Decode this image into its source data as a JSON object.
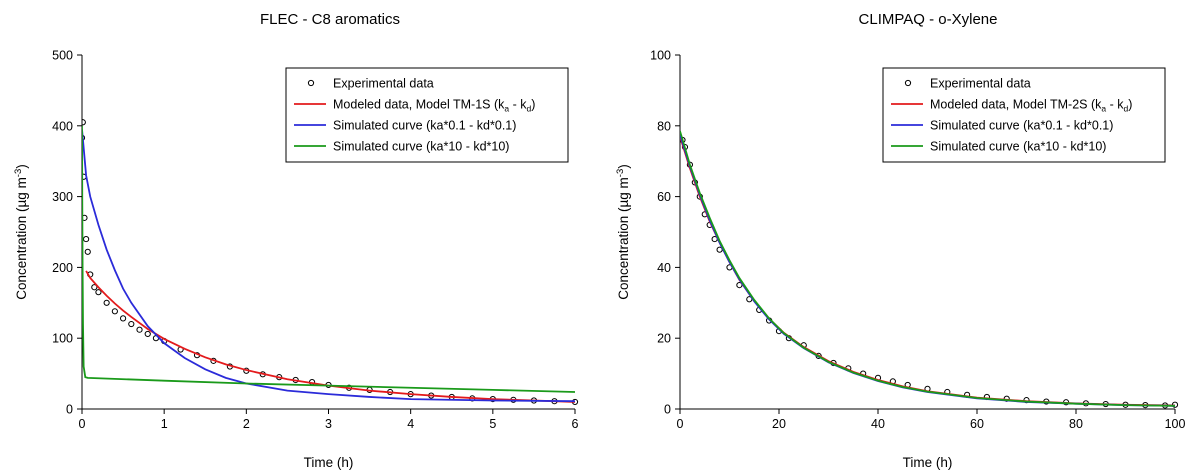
{
  "chart_data": [
    {
      "type": "scatter",
      "title": "FLEC - C8 aromatics",
      "xlabel": "Time (h)",
      "ylabel_prefix": "Concentration (µg m",
      "ylabel_sup": "-3",
      "ylabel_suffix": ")",
      "xlim": [
        0,
        6
      ],
      "ylim": [
        0,
        500
      ],
      "xticks": [
        0,
        1,
        2,
        3,
        4,
        5,
        6
      ],
      "yticks": [
        0,
        100,
        200,
        300,
        400,
        500
      ],
      "legend_position": "top-right",
      "legend": [
        {
          "kind": "marker",
          "label": "Experimental data"
        },
        {
          "kind": "line",
          "color": "#e31a1c",
          "label": "Modeled data, Model TM-1S (k",
          "sub1": "a",
          "mid": " - k",
          "sub2": "d",
          "end": ")"
        },
        {
          "kind": "line",
          "color": "#2b2bd9",
          "label": "Simulated curve (ka*0.1 - kd*0.1)"
        },
        {
          "kind": "line",
          "color": "#1a9a1a",
          "label": "Simulated curve  (ka*10 - kd*10)"
        }
      ],
      "series": [
        {
          "name": "Experimental data",
          "kind": "scatter",
          "x": [
            0.0,
            0.01,
            0.02,
            0.03,
            0.05,
            0.07,
            0.1,
            0.15,
            0.2,
            0.3,
            0.4,
            0.5,
            0.6,
            0.7,
            0.8,
            0.9,
            1.0,
            1.2,
            1.4,
            1.6,
            1.8,
            2.0,
            2.2,
            2.4,
            2.6,
            2.8,
            3.0,
            3.25,
            3.5,
            3.75,
            4.0,
            4.25,
            4.5,
            4.75,
            5.0,
            5.25,
            5.5,
            5.75,
            6.0
          ],
          "y": [
            383,
            405,
            328,
            270,
            240,
            222,
            190,
            172,
            165,
            150,
            138,
            128,
            120,
            112,
            106,
            100,
            96,
            84,
            76,
            68,
            60,
            54,
            49,
            45,
            41,
            38,
            34,
            30,
            27,
            24,
            21,
            19,
            17,
            15,
            14,
            13,
            12,
            11,
            10
          ]
        },
        {
          "name": "Modeled data, Model TM-1S (ka - kd)",
          "kind": "line",
          "color": "#e31a1c",
          "x": [
            0.05,
            0.1,
            0.2,
            0.3,
            0.4,
            0.5,
            0.6,
            0.8,
            1.0,
            1.25,
            1.5,
            1.75,
            2.0,
            2.5,
            3.0,
            3.5,
            4.0,
            4.5,
            5.0,
            5.5,
            6.0
          ],
          "y": [
            195,
            185,
            172,
            160,
            149,
            139,
            130,
            113,
            99,
            85,
            73,
            63,
            55,
            42,
            33,
            26,
            21,
            17,
            14,
            12,
            10
          ]
        },
        {
          "name": "Simulated curve (ka*0.1 - kd*0.1)",
          "kind": "line",
          "color": "#2b2bd9",
          "x": [
            0.0,
            0.05,
            0.1,
            0.2,
            0.3,
            0.4,
            0.5,
            0.6,
            0.8,
            1.0,
            1.25,
            1.5,
            1.75,
            2.0,
            2.5,
            3.0,
            3.5,
            4.0,
            5.0,
            6.0
          ],
          "y": [
            395,
            330,
            300,
            260,
            225,
            196,
            170,
            150,
            117,
            93,
            72,
            56,
            44,
            36,
            26,
            21,
            17,
            14,
            12,
            11
          ]
        },
        {
          "name": "Simulated curve (ka*10 - kd*10)",
          "kind": "line",
          "color": "#1a9a1a",
          "x": [
            0.0,
            0.003,
            0.007,
            0.012,
            0.02,
            0.04,
            0.07,
            1.0,
            2.0,
            3.0,
            4.0,
            5.0,
            6.0
          ],
          "y": [
            400,
            300,
            200,
            120,
            60,
            45,
            44,
            40,
            36,
            33,
            30,
            27,
            24
          ]
        }
      ]
    },
    {
      "type": "scatter",
      "title": "CLIMPAQ - o-Xylene",
      "xlabel": "Time (h)",
      "ylabel_prefix": "Concentration (µg m",
      "ylabel_sup": "-3",
      "ylabel_suffix": ")",
      "xlim": [
        0,
        100
      ],
      "ylim": [
        0,
        100
      ],
      "xticks": [
        0,
        20,
        40,
        60,
        80,
        100
      ],
      "yticks": [
        0,
        20,
        40,
        60,
        80,
        100
      ],
      "legend_position": "top-right",
      "legend": [
        {
          "kind": "marker",
          "label": "Experimental data"
        },
        {
          "kind": "line",
          "color": "#e31a1c",
          "label": "Modeled data, Model TM-2S (k",
          "sub1": "a",
          "mid": " - k",
          "sub2": "d",
          "end": ")"
        },
        {
          "kind": "line",
          "color": "#2b2bd9",
          "label": "Simulated curve (ka*0.1 - kd*0.1)"
        },
        {
          "kind": "line",
          "color": "#1a9a1a",
          "label": "Simulated curve (ka*10 - kd*10)"
        }
      ],
      "series": [
        {
          "name": "Experimental data",
          "kind": "scatter",
          "x": [
            0.5,
            1,
            2,
            3,
            4,
            5,
            6,
            7,
            8,
            10,
            12,
            14,
            16,
            18,
            20,
            22,
            25,
            28,
            31,
            34,
            37,
            40,
            43,
            46,
            50,
            54,
            58,
            62,
            66,
            70,
            74,
            78,
            82,
            86,
            90,
            94,
            98,
            100
          ],
          "y": [
            76,
            74,
            69,
            64,
            60,
            55,
            52,
            48,
            45,
            40,
            35,
            31,
            28,
            25,
            22,
            20,
            18,
            15,
            13,
            11.5,
            10,
            8.8,
            7.8,
            6.8,
            5.7,
            4.8,
            4.0,
            3.4,
            2.9,
            2.5,
            2.1,
            1.9,
            1.6,
            1.4,
            1.2,
            1.1,
            1.0,
            1.2
          ]
        },
        {
          "name": "Modeled data, Model TM-2S (ka - kd)",
          "kind": "line",
          "color": "#e31a1c",
          "x": [
            0,
            2,
            4,
            6,
            8,
            10,
            12,
            15,
            18,
            21,
            25,
            30,
            35,
            40,
            45,
            50,
            60,
            70,
            80,
            90,
            100
          ],
          "y": [
            77,
            68,
            60,
            53,
            47,
            41.5,
            36.5,
            30.5,
            25.5,
            21.5,
            17.5,
            13.5,
            10.5,
            8.2,
            6.4,
            5.0,
            3.2,
            2.2,
            1.6,
            1.2,
            1.0
          ]
        },
        {
          "name": "Simulated curve (ka*0.1 - kd*0.1)",
          "kind": "line",
          "color": "#2b2bd9",
          "x": [
            0,
            2,
            4,
            6,
            8,
            10,
            12,
            15,
            18,
            21,
            25,
            30,
            35,
            40,
            45,
            50,
            60,
            70,
            80,
            90,
            100
          ],
          "y": [
            77.5,
            68.5,
            60.5,
            53.3,
            47,
            41.5,
            36.6,
            30.4,
            25.3,
            21.2,
            17.2,
            13.2,
            10.2,
            7.9,
            6.1,
            4.8,
            3.0,
            2.0,
            1.5,
            1.1,
            0.9
          ]
        },
        {
          "name": "Simulated curve (ka*10 - kd*10)",
          "kind": "line",
          "color": "#1a9a1a",
          "x": [
            0,
            2,
            4,
            6,
            8,
            10,
            12,
            15,
            18,
            21,
            25,
            30,
            35,
            40,
            45,
            50,
            60,
            70,
            80,
            90,
            100
          ],
          "y": [
            78.5,
            69,
            61,
            54,
            47.5,
            42,
            37,
            30.8,
            25.6,
            21.4,
            17.3,
            13.3,
            10.3,
            8.0,
            6.2,
            4.9,
            3.1,
            2.1,
            1.5,
            1.1,
            0.9
          ]
        }
      ]
    }
  ]
}
